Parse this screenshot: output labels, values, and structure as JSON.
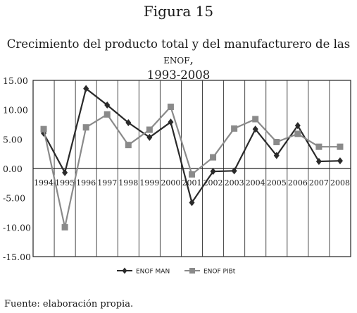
{
  "figure": {
    "label": "Figura 15",
    "title_line1_pre": "Crecimiento del producto total y del manufacturero de las ",
    "title_line1_sc": "enof,",
    "title_line2": "1993-2008"
  },
  "source": "Fuente: elaboración propia.",
  "chart_data": {
    "type": "line",
    "title": "Crecimiento del producto total y del manufacturero de las ENOF, 1993-2008",
    "xlabel": "",
    "ylabel": "",
    "categories": [
      "1994",
      "1995",
      "1996",
      "1997",
      "1998",
      "1999",
      "2000",
      "2001",
      "2002",
      "2003",
      "2004",
      "2005",
      "2006",
      "2007",
      "2008"
    ],
    "yticks": [
      "15.00",
      "10.00",
      "5.00",
      "0.00",
      "-5.00",
      "-10.00",
      "-15.00"
    ],
    "ylim": [
      -15,
      15
    ],
    "grid": "vertical",
    "legend_position": "bottom",
    "series": [
      {
        "name": "ENOF MAN",
        "marker": "diamond",
        "color": "#2a2a2a",
        "values": [
          6.0,
          -0.7,
          13.6,
          10.8,
          7.8,
          5.3,
          7.9,
          -5.8,
          -0.5,
          -0.4,
          6.7,
          2.2,
          7.3,
          1.2,
          1.3
        ]
      },
      {
        "name": "ENOF PIBt",
        "marker": "square",
        "color": "#8a8a8a",
        "values": [
          6.7,
          -10.0,
          7.0,
          9.2,
          4.0,
          6.6,
          10.5,
          -1.0,
          1.9,
          6.8,
          8.4,
          4.5,
          5.9,
          3.7,
          3.7
        ]
      }
    ]
  }
}
